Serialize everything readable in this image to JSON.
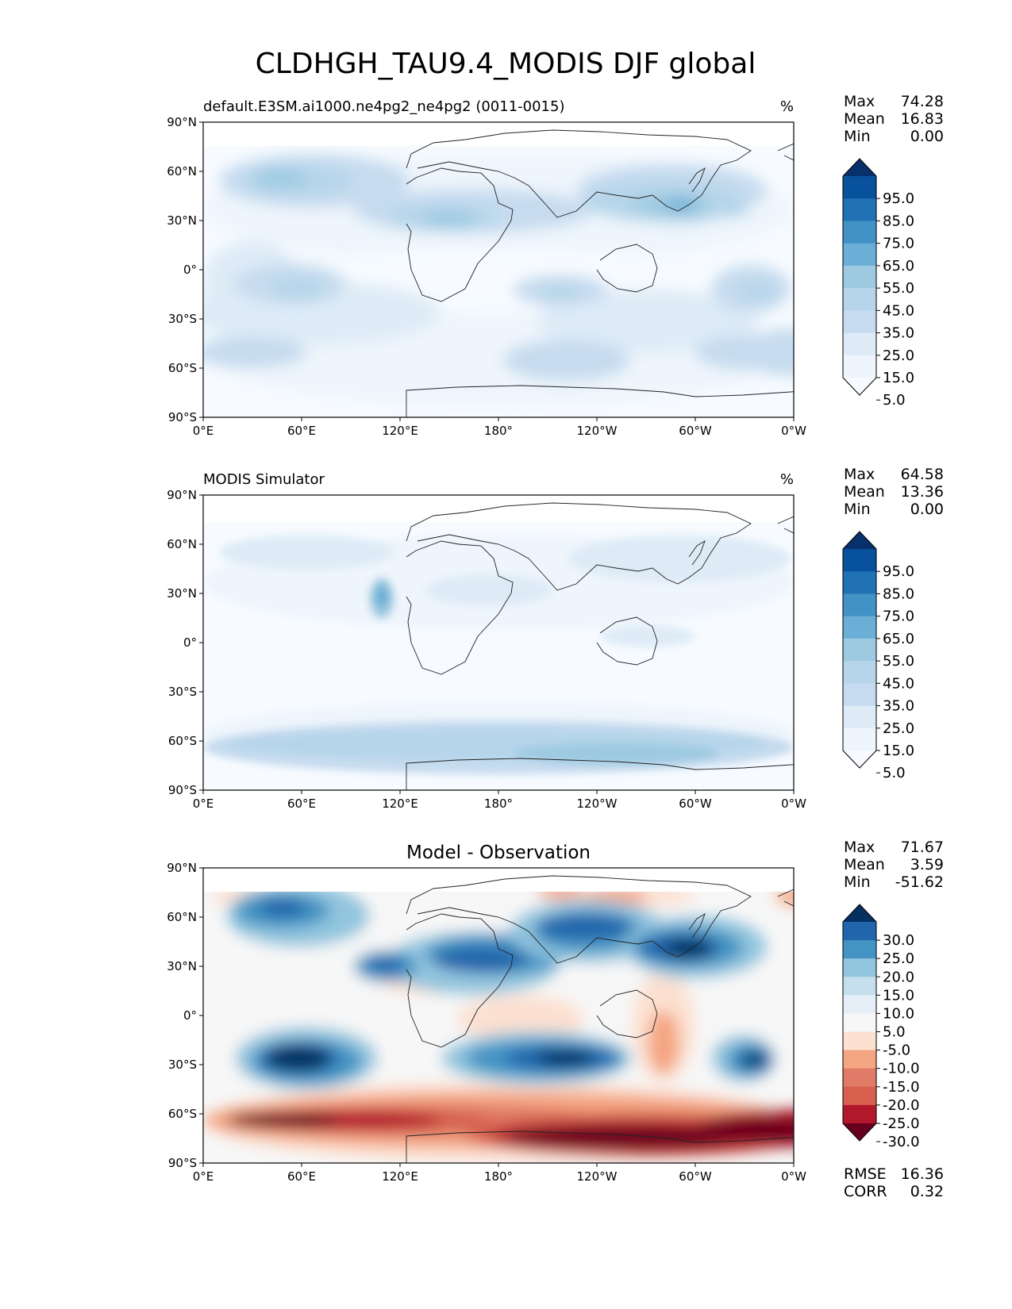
{
  "title": "CLDHGH_TAU9.4_MODIS DJF global",
  "lat_ticks": [
    "90°N",
    "60°N",
    "30°N",
    "0°",
    "30°S",
    "60°S",
    "90°S"
  ],
  "lon_ticks": [
    "0°E",
    "60°E",
    "120°E",
    "180°",
    "120°W",
    "60°W",
    "0°W"
  ],
  "panels": [
    {
      "id": "model",
      "left_title": "default.E3SM.ai1000.ne4pg2_ne4pg2 (0011-0015)",
      "center_title": "",
      "units": "%",
      "stats": [
        {
          "label": "Max",
          "value": "74.28"
        },
        {
          "label": "Mean",
          "value": "16.83"
        },
        {
          "label": "Min",
          "value": "0.00"
        }
      ],
      "colorbar": {
        "labels": [
          "95.0",
          "85.0",
          "75.0",
          "65.0",
          "55.0",
          "45.0",
          "35.0",
          "25.0",
          "15.0",
          "5.0"
        ],
        "colors": [
          "#08306b",
          "#08519c",
          "#2171b5",
          "#4292c6",
          "#6baed6",
          "#9ecae1",
          "#b6d5ea",
          "#c6dbef",
          "#deebf7",
          "#eef5fc",
          "#f7fbff"
        ]
      },
      "footer": []
    },
    {
      "id": "obs",
      "left_title": "MODIS Simulator",
      "center_title": "",
      "units": "%",
      "stats": [
        {
          "label": "Max",
          "value": "64.58"
        },
        {
          "label": "Mean",
          "value": "13.36"
        },
        {
          "label": "Min",
          "value": "0.00"
        }
      ],
      "colorbar": {
        "labels": [
          "95.0",
          "85.0",
          "75.0",
          "65.0",
          "55.0",
          "45.0",
          "35.0",
          "25.0",
          "15.0",
          "5.0"
        ],
        "colors": [
          "#08306b",
          "#08519c",
          "#2171b5",
          "#4292c6",
          "#6baed6",
          "#9ecae1",
          "#b6d5ea",
          "#c6dbef",
          "#deebf7",
          "#eef5fc",
          "#f7fbff"
        ]
      },
      "footer": []
    },
    {
      "id": "diff",
      "left_title": "",
      "center_title": "Model - Observation",
      "units": "",
      "stats": [
        {
          "label": "Max",
          "value": "71.67"
        },
        {
          "label": "Mean",
          "value": "3.59"
        },
        {
          "label": "Min",
          "value": "-51.62"
        }
      ],
      "colorbar": {
        "labels": [
          "30.0",
          "25.0",
          "20.0",
          "15.0",
          "10.0",
          "5.0",
          "-5.0",
          "-10.0",
          "-15.0",
          "-20.0",
          "-25.0",
          "-30.0"
        ],
        "colors": [
          "#053061",
          "#2166ac",
          "#4393c3",
          "#92c5de",
          "#c6dfee",
          "#e6eff7",
          "#f7f7f7",
          "#fce0d0",
          "#f4a582",
          "#e07b67",
          "#d6604d",
          "#b2182b",
          "#67001f"
        ]
      },
      "footer": [
        {
          "label": "RMSE",
          "value": "16.36"
        },
        {
          "label": "CORR",
          "value": "0.32"
        }
      ]
    }
  ]
}
